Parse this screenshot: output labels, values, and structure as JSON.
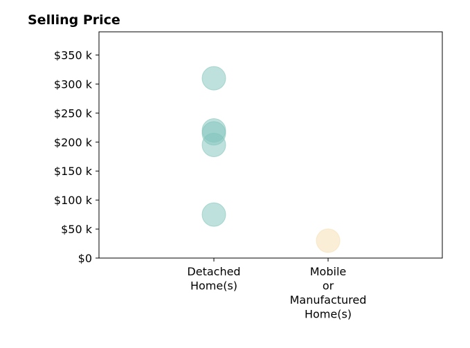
{
  "chart_data": {
    "type": "scatter",
    "title": "Selling Price",
    "xlabel": "",
    "ylabel": "",
    "categories": [
      [
        "Detached",
        "Home(s)"
      ],
      [
        "Mobile",
        "or",
        "Manufactured",
        "Home(s)"
      ]
    ],
    "y_ticks": [
      {
        "value": 0,
        "label": "$0"
      },
      {
        "value": 50000,
        "label": "$50 k"
      },
      {
        "value": 100000,
        "label": "$100 k"
      },
      {
        "value": 150000,
        "label": "$150 k"
      },
      {
        "value": 200000,
        "label": "$200 k"
      },
      {
        "value": 250000,
        "label": "$250 k"
      },
      {
        "value": 300000,
        "label": "$300 k"
      },
      {
        "value": 350000,
        "label": "$350 k"
      }
    ],
    "ylim": [
      0,
      390000
    ],
    "grid": false,
    "series": [
      {
        "category": 0,
        "color": "#80c4bb",
        "values": [
          310000,
          220000,
          215000,
          195000,
          75000
        ]
      },
      {
        "category": 1,
        "color": "#f5deb0",
        "values": [
          30000
        ]
      }
    ]
  }
}
